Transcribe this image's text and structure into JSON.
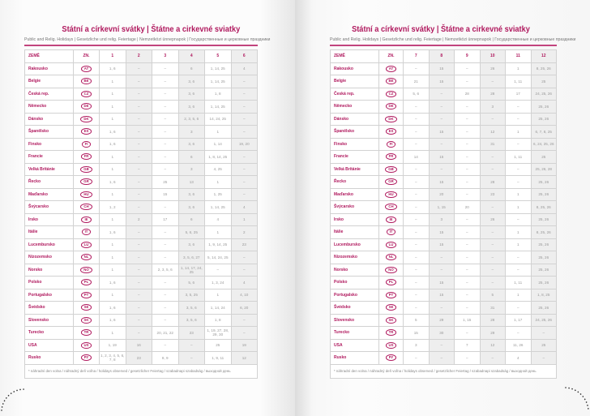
{
  "title": "Státní a církevní svátky | Štátne a cirkevné sviatky",
  "subtitle": "Public and Relig. Holidays | Gesetzliche und relig. Feiertage | Nemzetközi ünnepnapok | Государственные и церковные праздники",
  "headers": {
    "country": "ZEMĚ",
    "code": "ZN."
  },
  "accent_color": "#b0195e",
  "footnote": "* náhradní den volna / náhradný deň voľna / holidays observed / gesetzlicher Feiertag / szabadnapi szabadság / выходной день",
  "left_months": [
    "1",
    "2",
    "3",
    "4",
    "5",
    "6"
  ],
  "right_months": [
    "7",
    "8",
    "9",
    "10",
    "11",
    "12"
  ],
  "rows": [
    {
      "country": "Rakousko",
      "code": "AT",
      "left": [
        "1, 6",
        "–",
        "–",
        "6",
        "1, 14, 25",
        "4"
      ],
      "right": [
        "–",
        "15",
        "–",
        "26",
        "1",
        "8, 25, 26"
      ]
    },
    {
      "country": "Belgie",
      "code": "BE",
      "left": [
        "1",
        "–",
        "–",
        "3, 6",
        "1, 14, 25",
        "–"
      ],
      "right": [
        "21",
        "15",
        "–",
        "–",
        "1, 11",
        "25"
      ]
    },
    {
      "country": "Česká rep.",
      "code": "CZ",
      "left": [
        "1",
        "–",
        "–",
        "3, 6",
        "1, 8",
        "–"
      ],
      "right": [
        "5, 6",
        "–",
        "28",
        "28",
        "17",
        "24, 25, 26"
      ]
    },
    {
      "country": "Německo",
      "code": "DE",
      "left": [
        "1",
        "–",
        "–",
        "3, 6",
        "1, 14, 25",
        "–"
      ],
      "right": [
        "–",
        "–",
        "–",
        "3",
        "–",
        "25, 26"
      ]
    },
    {
      "country": "Dánsko",
      "code": "DK",
      "left": [
        "1",
        "–",
        "–",
        "2, 3, 5, 6",
        "14, 24, 25",
        "–"
      ],
      "right": [
        "–",
        "–",
        "–",
        "–",
        "–",
        "25, 26"
      ]
    },
    {
      "country": "Španělsko",
      "code": "ES",
      "left": [
        "1, 6",
        "–",
        "–",
        "3",
        "1",
        "–"
      ],
      "right": [
        "–",
        "15",
        "–",
        "12",
        "1",
        "6, 7, 8, 25"
      ]
    },
    {
      "country": "Finsko",
      "code": "FI",
      "left": [
        "1, 6",
        "–",
        "–",
        "3, 6",
        "1, 14",
        "19, 20"
      ],
      "right": [
        "–",
        "–",
        "–",
        "31",
        "–",
        "6, 24, 25, 26"
      ]
    },
    {
      "country": "Francie",
      "code": "FR",
      "left": [
        "1",
        "–",
        "–",
        "6",
        "1, 8, 14, 25",
        "–"
      ],
      "right": [
        "14",
        "15",
        "–",
        "–",
        "1, 11",
        "25"
      ]
    },
    {
      "country": "Velká Británie",
      "code": "GB",
      "left": [
        "1",
        "–",
        "–",
        "3",
        "4, 25",
        "–"
      ],
      "right": [
        "–",
        "–",
        "–",
        "–",
        "–",
        "25, 26, 28"
      ]
    },
    {
      "country": "Řecko",
      "code": "GR",
      "left": [
        "1, 6",
        "–",
        "25",
        "13",
        "1",
        "–"
      ],
      "right": [
        "–",
        "15",
        "–",
        "28",
        "–",
        "25, 26"
      ]
    },
    {
      "country": "Maďarsko",
      "code": "HU",
      "left": [
        "1",
        "–",
        "15",
        "3, 6",
        "1, 25",
        "–"
      ],
      "right": [
        "–",
        "20",
        "–",
        "23",
        "1",
        "25, 26"
      ]
    },
    {
      "country": "Švýcarsko",
      "code": "CH",
      "left": [
        "1, 2",
        "–",
        "–",
        "3, 6",
        "1, 14, 25",
        "4"
      ],
      "right": [
        "–",
        "1, 15",
        "20",
        "–",
        "1",
        "8, 25, 26"
      ]
    },
    {
      "country": "Irsko",
      "code": "IE",
      "left": [
        "1",
        "2",
        "17",
        "6",
        "4",
        "1"
      ],
      "right": [
        "–",
        "3",
        "–",
        "26",
        "–",
        "25, 26"
      ]
    },
    {
      "country": "Itálie",
      "code": "IT",
      "left": [
        "1, 6",
        "–",
        "–",
        "5, 6, 25",
        "1",
        "2"
      ],
      "right": [
        "–",
        "15",
        "–",
        "–",
        "1",
        "8, 25, 26"
      ]
    },
    {
      "country": "Lucembursko",
      "code": "LU",
      "left": [
        "1",
        "–",
        "–",
        "3, 6",
        "1, 9, 14, 25",
        "23"
      ],
      "right": [
        "–",
        "15",
        "–",
        "–",
        "1",
        "25, 26"
      ]
    },
    {
      "country": "Nizozemsko",
      "code": "NL",
      "left": [
        "1",
        "–",
        "–",
        "3, 5, 6, 27",
        "5, 14, 24, 25",
        "–"
      ],
      "right": [
        "–",
        "–",
        "–",
        "–",
        "–",
        "25, 26"
      ]
    },
    {
      "country": "Norsko",
      "code": "NO",
      "left": [
        "1",
        "–",
        "2, 3, 5, 6",
        "1, 14, 17, 24, 25",
        "–",
        "–"
      ],
      "right": [
        "–",
        "–",
        "–",
        "–",
        "–",
        "25, 26"
      ]
    },
    {
      "country": "Polsko",
      "code": "PL",
      "left": [
        "1, 6",
        "–",
        "–",
        "5, 6",
        "1, 3, 24",
        "4"
      ],
      "right": [
        "–",
        "15",
        "–",
        "–",
        "1, 11",
        "25, 26"
      ]
    },
    {
      "country": "Portugalsko",
      "code": "PT",
      "left": [
        "1",
        "–",
        "–",
        "3, 5, 25",
        "1",
        "4, 10"
      ],
      "right": [
        "–",
        "15",
        "–",
        "5",
        "1",
        "1, 8, 25"
      ]
    },
    {
      "country": "Švédsko",
      "code": "SE",
      "left": [
        "1, 6",
        "–",
        "–",
        "3, 5, 6",
        "1, 14, 24",
        "6, 20"
      ],
      "right": [
        "–",
        "–",
        "–",
        "31",
        "–",
        "25, 26"
      ]
    },
    {
      "country": "Slovensko",
      "code": "SK",
      "left": [
        "1, 6",
        "–",
        "–",
        "3, 5, 6",
        "1, 8",
        "–"
      ],
      "right": [
        "5",
        "29",
        "1, 15",
        "28",
        "1, 17",
        "24, 25, 26"
      ]
    },
    {
      "country": "Turecko",
      "code": "TR",
      "left": [
        "1",
        "–",
        "20, 21, 22",
        "23",
        "1, 19, 27, 28, 29, 30",
        "–"
      ],
      "right": [
        "15",
        "30",
        "–",
        "29",
        "–",
        "–"
      ]
    },
    {
      "country": "USA",
      "code": "US",
      "left": [
        "1, 19",
        "16",
        "–",
        "–",
        "25",
        "19"
      ],
      "right": [
        "3",
        "–",
        "7",
        "12",
        "11, 26",
        "25"
      ]
    },
    {
      "country": "Rusko",
      "code": "РУ",
      "left": [
        "1, 2, 3, 4, 5, 6, 7, 8",
        "23",
        "8, 9",
        "–",
        "1, 9, 11",
        "12"
      ],
      "right": [
        "–",
        "–",
        "–",
        "–",
        "4",
        "–"
      ]
    }
  ]
}
